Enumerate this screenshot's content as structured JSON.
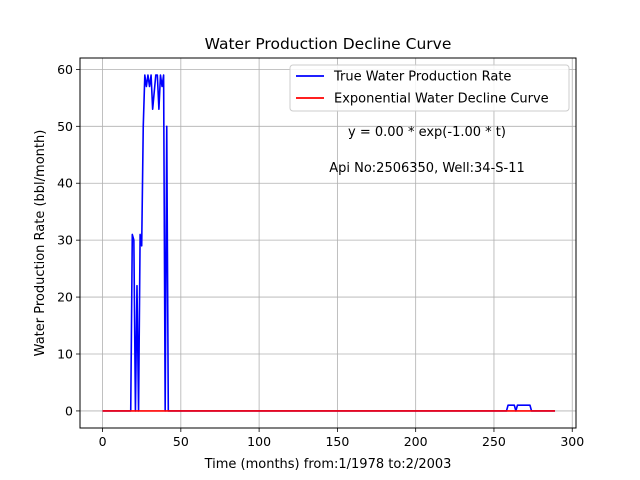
{
  "chart_data": {
    "type": "line",
    "title": "Water Production Decline Curve",
    "xlabel": "Time (months) from:1/1978 to:2/2003",
    "ylabel": "Water Production Rate (bbl/month)",
    "xlim": [
      -14.4,
      302.4
    ],
    "ylim": [
      -3.0,
      62.0
    ],
    "xticks": [
      0,
      50,
      100,
      150,
      200,
      250,
      300
    ],
    "yticks": [
      0,
      10,
      20,
      30,
      40,
      50,
      60
    ],
    "grid": true,
    "legend_position": "top-right",
    "annotations": [
      {
        "text": "y = 0.00 * exp(-1.00 * t)"
      },
      {
        "text": "Api No:2506350, Well:34-S-11"
      }
    ],
    "series": [
      {
        "name": "True Water Production Rate",
        "color": "#0000ff",
        "x": [
          0,
          18,
          19,
          20,
          21,
          22,
          23,
          24,
          25,
          26,
          27,
          28,
          29,
          30,
          31,
          32,
          33,
          34,
          35,
          36,
          37,
          38,
          39,
          40,
          41,
          42,
          43,
          44,
          100,
          200,
          258,
          259,
          263,
          264,
          265,
          272,
          273,
          274,
          289
        ],
        "y": [
          0,
          0,
          31,
          30,
          0,
          22,
          0,
          31,
          29,
          50,
          59,
          57,
          59,
          57,
          59,
          53,
          56,
          59,
          59,
          53,
          59,
          57,
          59,
          0,
          50,
          0,
          0,
          0,
          0,
          0,
          0,
          1,
          1,
          0,
          1,
          1,
          1,
          0,
          0
        ]
      },
      {
        "name": "Exponential Water Decline Curve",
        "color": "#ff0000",
        "x": [
          0,
          289
        ],
        "y": [
          0,
          0
        ]
      }
    ]
  }
}
